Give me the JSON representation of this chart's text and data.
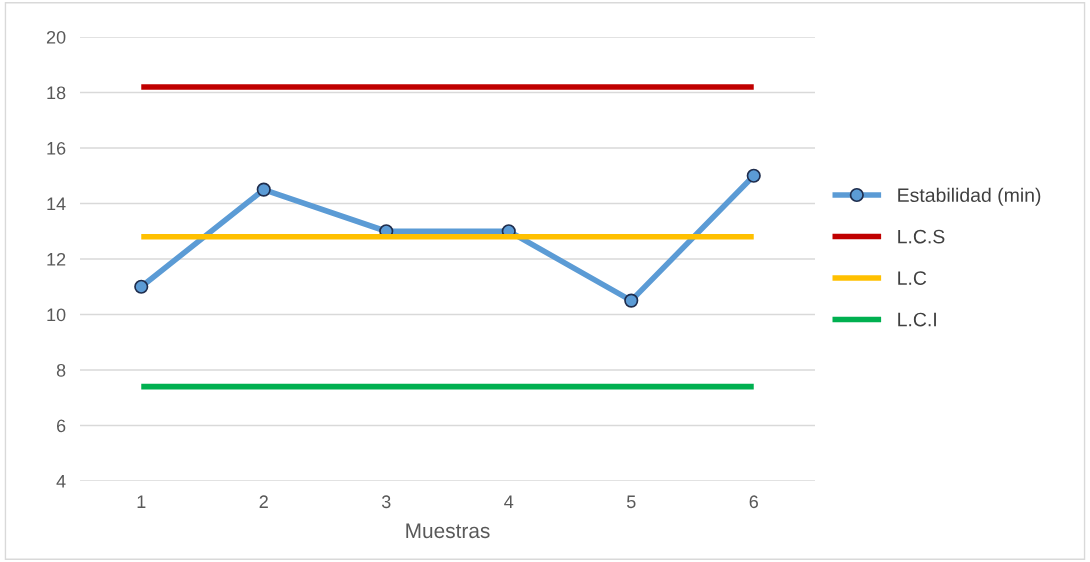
{
  "chart_data": {
    "type": "line",
    "xlabel": "Muestras",
    "categories": [
      "1",
      "2",
      "3",
      "4",
      "5",
      "6"
    ],
    "series": [
      {
        "name": "Estabilidad (min)",
        "color": "#5b9bd5",
        "values": [
          11,
          14.5,
          13,
          13,
          10.5,
          15
        ],
        "marker": "circle"
      },
      {
        "name": "L.C.S",
        "color": "#c00000",
        "values": [
          18.2,
          18.2,
          18.2,
          18.2,
          18.2,
          18.2
        ],
        "marker": "none"
      },
      {
        "name": "L.C",
        "color": "#ffc000",
        "values": [
          12.8,
          12.8,
          12.8,
          12.8,
          12.8,
          12.8
        ],
        "marker": "none"
      },
      {
        "name": "L.C.I",
        "color": "#00b050",
        "values": [
          7.4,
          7.4,
          7.4,
          7.4,
          7.4,
          7.4
        ],
        "marker": "none"
      }
    ],
    "ylim": [
      4,
      20
    ],
    "yticks": [
      4,
      6,
      8,
      10,
      12,
      14,
      16,
      18,
      20
    ],
    "grid": "y",
    "legend": "right"
  }
}
